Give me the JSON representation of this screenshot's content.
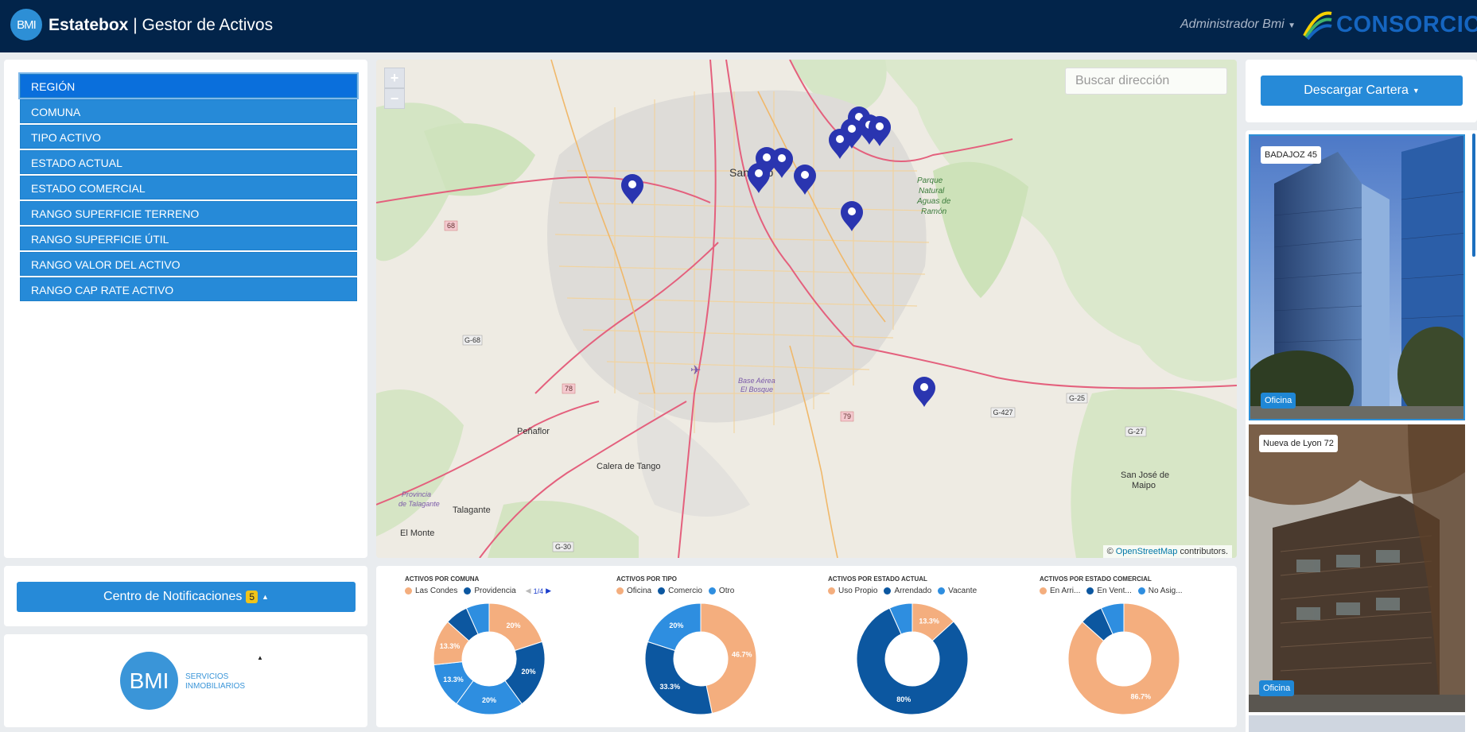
{
  "header": {
    "logo_text": "BMI",
    "brand_bold": "Estatebox",
    "brand_sep": "|",
    "brand_rest": "Gestor de Activos",
    "user": "Administrador Bmi",
    "partner": "CONSORCIO"
  },
  "filters": [
    {
      "label": "REGIÓN",
      "active": true
    },
    {
      "label": "COMUNA"
    },
    {
      "label": "TIPO ACTIVO"
    },
    {
      "label": "ESTADO ACTUAL"
    },
    {
      "label": "ESTADO COMERCIAL"
    },
    {
      "label": "RANGO SUPERFICIE TERRENO"
    },
    {
      "label": "RANGO SUPERFICIE ÚTIL"
    },
    {
      "label": "RANGO VALOR DEL ACTIVO"
    },
    {
      "label": "RANGO CAP RATE ACTIVO"
    }
  ],
  "map": {
    "search_placeholder": "Buscar dirección",
    "zoom_in": "+",
    "zoom_out": "−",
    "attribution_prefix": "©",
    "attribution_link": "OpenStreetMap",
    "attribution_suffix": "contributors.",
    "labels": {
      "santiago": "Santiago",
      "parque": "Parque",
      "natural": "Natural",
      "aguas": "Aguas de",
      "ramon": "Ramón",
      "penaflor": "Peñaflor",
      "calera": "Calera de Tango",
      "talagante": "Talagante",
      "elmonte": "El Monte",
      "provincia": "Provincia",
      "detalagante": "de Talagante",
      "basea": "Base Aérea",
      "baseb": "El Bosque",
      "sanjose": "San José de",
      "maipo": "Maipo",
      "r68": "68",
      "g68": "G-68",
      "r78": "78",
      "r79": "79",
      "g427": "G-427",
      "g25": "G-25",
      "g27": "G-27",
      "g30": "G-30"
    }
  },
  "actions": {
    "download": "Descargar Cartera",
    "notifications": "Centro de Notificaciones",
    "notifications_count": "5"
  },
  "bmi": {
    "logo": "BMI",
    "line1": "SERVICIOS",
    "line2": "INMOBILIARIOS"
  },
  "cards": [
    {
      "name": "BADAJOZ 45",
      "type": "Oficina"
    },
    {
      "name": "Nueva de Lyon 72",
      "type": "Oficina"
    }
  ],
  "colors": {
    "navy": "#02244a",
    "primary": "#268ad8",
    "peach": "#f4ae7e",
    "dark_blue": "#0c57a0",
    "mid_blue": "#2e8ee0",
    "pin": "#2a35b0"
  },
  "chart_data": [
    {
      "type": "pie",
      "title": "ACTIVOS POR COMUNA",
      "legend": [
        "Las Condes",
        "Providencia"
      ],
      "pager": "1/4",
      "values": [
        20,
        20,
        20,
        13.3,
        13.3,
        6.7,
        6.7
      ],
      "labels": [
        "20%",
        "20%",
        "20%",
        "13.3%",
        "13.3%",
        "",
        ""
      ],
      "colors": [
        "#f4ae7e",
        "#0c57a0",
        "#2e8ee0",
        "#2e8ee0",
        "#f4ae7e",
        "#0c57a0",
        "#2e8ee0"
      ]
    },
    {
      "type": "pie",
      "title": "ACTIVOS POR TIPO",
      "legend": [
        "Oficina",
        "Comercio",
        "Otro"
      ],
      "values": [
        46.7,
        33.3,
        20
      ],
      "labels": [
        "46.7%",
        "33.3%",
        "20%"
      ],
      "colors": [
        "#f4ae7e",
        "#0c57a0",
        "#2e8ee0"
      ]
    },
    {
      "type": "pie",
      "title": "ACTIVOS POR ESTADO ACTUAL",
      "legend": [
        "Uso Propio",
        "Arrendado",
        "Vacante"
      ],
      "values": [
        13.3,
        80,
        6.7
      ],
      "labels": [
        "13.3%",
        "80%",
        ""
      ],
      "colors": [
        "#f4ae7e",
        "#0c57a0",
        "#2e8ee0"
      ]
    },
    {
      "type": "pie",
      "title": "ACTIVOS POR ESTADO COMERCIAL",
      "legend": [
        "En Arri...",
        "En Vent...",
        "No Asig..."
      ],
      "values": [
        86.7,
        6.7,
        6.7
      ],
      "labels": [
        "86.7%",
        "",
        ""
      ],
      "colors": [
        "#f4ae7e",
        "#0c57a0",
        "#2e8ee0"
      ]
    }
  ]
}
